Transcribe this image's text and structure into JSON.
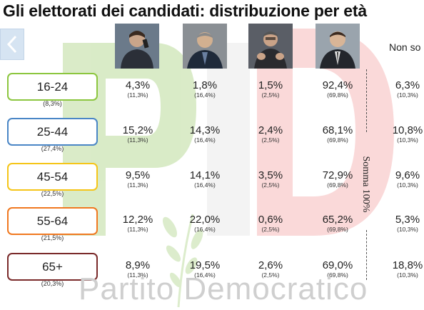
{
  "title": "Gli elettorati dei candidati: distribuzione per età",
  "nav": {
    "prev_icon": "chevron-left-icon"
  },
  "candidates": [
    {
      "photo": "candidate-1-photo",
      "photo_bg": "#6b7a8a"
    },
    {
      "photo": "candidate-2-photo",
      "photo_bg": "#8a8f94"
    },
    {
      "photo": "candidate-3-photo",
      "photo_bg": "#5a5e66"
    },
    {
      "photo": "candidate-4-photo",
      "photo_bg": "#9aa4ad"
    }
  ],
  "non_so_label": "Non so",
  "somma_label": "Somma 100%",
  "brand_watermark": "Partito Democratico",
  "colors": {
    "green": "#8cc63f",
    "blue": "#4a86c6",
    "yellow": "#f5c518",
    "orange": "#f07820",
    "darkred": "#7a2a2a"
  },
  "rows": [
    {
      "age": "16-24",
      "share": "(8,3%)",
      "border": "#8cc63f",
      "cells": [
        [
          "4,3%",
          "(11,3%)"
        ],
        [
          "1,8%",
          "(16,4%)"
        ],
        [
          "1,5%",
          "(2,5%)"
        ],
        [
          "92,4%",
          "(69,8%)"
        ],
        [
          "6,3%",
          "(10,3%)"
        ]
      ]
    },
    {
      "age": "25-44",
      "share": "(27,4%)",
      "border": "#4a86c6",
      "cells": [
        [
          "15,2%",
          "(11,3%)"
        ],
        [
          "14,3%",
          "(16,4%)"
        ],
        [
          "2,4%",
          "(2,5%)"
        ],
        [
          "68,1%",
          "(69,8%)"
        ],
        [
          "10,8%",
          "(10,3%)"
        ]
      ]
    },
    {
      "age": "45-54",
      "share": "(22,5%)",
      "border": "#f5c518",
      "cells": [
        [
          "9,5%",
          "(11,3%)"
        ],
        [
          "14,1%",
          "(16,4%)"
        ],
        [
          "3,5%",
          "(2,5%)"
        ],
        [
          "72,9%",
          "(69,8%)"
        ],
        [
          "9,6%",
          "(10,3%)"
        ]
      ]
    },
    {
      "age": "55-64",
      "share": "(21,5%)",
      "border": "#f07820",
      "cells": [
        [
          "12,2%",
          "(11,3%)"
        ],
        [
          "22,0%",
          "(16,4%)"
        ],
        [
          "0,6%",
          "(2,5%)"
        ],
        [
          "65,2%",
          "(69,8%)"
        ],
        [
          "5,3%",
          "(10,3%)"
        ]
      ]
    },
    {
      "age": "65+",
      "share": "(20,3%)",
      "border": "#7a2a2a",
      "cells": [
        [
          "8,9%",
          "(11,3%)"
        ],
        [
          "19,5%",
          "(16,4%)"
        ],
        [
          "2,6%",
          "(2,5%)"
        ],
        [
          "69,0%",
          "(69,8%)"
        ],
        [
          "18,8%",
          "(10,3%)"
        ]
      ]
    }
  ]
}
